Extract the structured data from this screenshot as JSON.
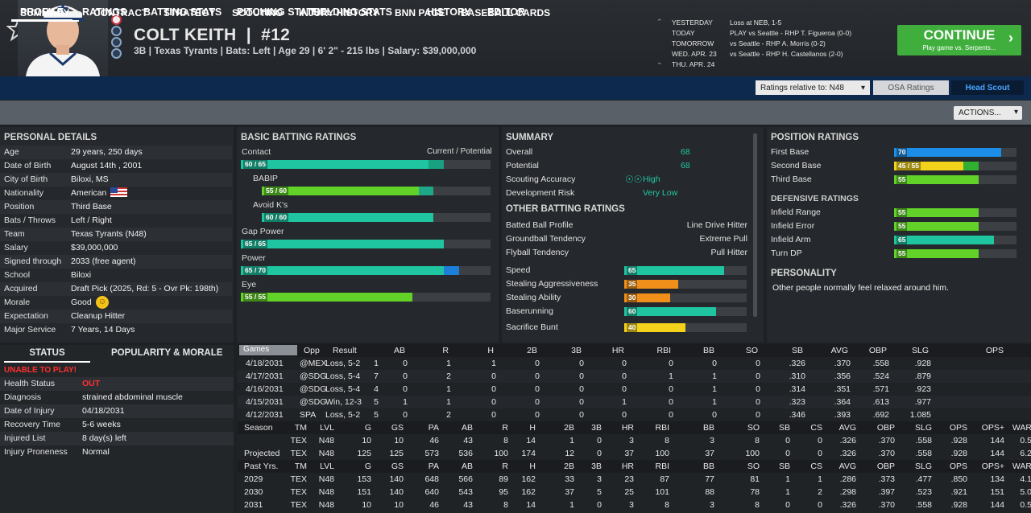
{
  "header": {
    "name": "COLT KEITH",
    "number": "#12",
    "info": "3B | Texas Tyrants | Bats: Left | Age 29 | 6' 2\" - 215 lbs | Salary: $39,000,000",
    "schedule": [
      {
        "day": "YESTERDAY",
        "game": "Loss at NEB, 1-5"
      },
      {
        "day": "TODAY",
        "game": "PLAY vs Seattle - RHP T. Figueroa (0-0)"
      },
      {
        "day": "TOMORROW",
        "game": "vs Seattle - RHP A. Morris (0-2)"
      },
      {
        "day": "WED. APR. 23",
        "game": "vs Seattle - RHP H. Castellanos (2-0)"
      },
      {
        "day": "THU. APR. 24",
        "game": ""
      }
    ],
    "continue_label": "CONTINUE",
    "continue_sub": "Play game vs. Serpents..."
  },
  "nav": {
    "main": [
      "PROFILE",
      "RATINGS",
      "BATTING STATS",
      "PITCHING STATS",
      "FIELDING STATS",
      "HISTORY",
      "EDITOR"
    ],
    "sub": [
      "SUMMARY",
      "CONTRACT",
      "STRATEGY",
      "SCOUTING",
      "INJURY HISTORY",
      "BNN PAGE",
      "BASEBALL CARDS"
    ],
    "ratings_relative": "Ratings relative to: N48",
    "osa": "OSA Ratings",
    "head_scout": "Head Scout",
    "actions": "ACTIONS..."
  },
  "personal": {
    "title": "PERSONAL DETAILS",
    "rows": [
      [
        "Age",
        "29 years, 250 days"
      ],
      [
        "Date of Birth",
        "August 14th , 2001"
      ],
      [
        "City of Birth",
        "Biloxi, MS"
      ],
      [
        "Nationality",
        "American"
      ],
      [
        "Position",
        "Third Base"
      ],
      [
        "Bats / Throws",
        "Left / Right"
      ],
      [
        "Team",
        "Texas Tyrants (N48)"
      ],
      [
        "Salary",
        "$39,000,000"
      ],
      [
        "Signed through",
        "2033 (free agent)"
      ],
      [
        "School",
        "Biloxi"
      ],
      [
        "Acquired",
        "Draft Pick (2025, Rd: 5 - Ovr Pk: 198th)"
      ],
      [
        "Morale",
        "Good"
      ],
      [
        "Expectation",
        "Cleanup Hitter"
      ],
      [
        "Major Service",
        "7 Years, 14 Days"
      ]
    ]
  },
  "status": {
    "tab1": "STATUS",
    "tab2": "POPULARITY & MORALE",
    "alert": "UNABLE TO PLAY!",
    "rows": [
      [
        "Health Status",
        "OUT"
      ],
      [
        "Diagnosis",
        "strained abdominal muscle"
      ],
      [
        "Date of Injury",
        "04/18/2031"
      ],
      [
        "Recovery Time",
        "5-6 weeks"
      ],
      [
        "Injured List",
        "8 day(s) left"
      ],
      [
        "Injury Proneness",
        "Normal"
      ]
    ]
  },
  "batting": {
    "title": "BASIC BATTING RATINGS",
    "col": "Current / Potential",
    "bars": [
      {
        "name": "Contact",
        "label": "60 / 65",
        "cur": 60,
        "pot": 65,
        "color": "#1fc4a0",
        "indent": false
      },
      {
        "name": "BABIP",
        "label": "55 / 60",
        "cur": 55,
        "pot": 60,
        "color": "#62d128",
        "indent": true
      },
      {
        "name": "Avoid K's",
        "label": "60 / 60",
        "cur": 60,
        "pot": 60,
        "color": "#1fc4a0",
        "indent": true
      },
      {
        "name": "Gap Power",
        "label": "65 / 65",
        "cur": 65,
        "pot": 65,
        "color": "#1fc4a0",
        "indent": false
      },
      {
        "name": "Power",
        "label": "65 / 70",
        "cur": 65,
        "pot": 70,
        "color": "#1fc4a0",
        "indent": false
      },
      {
        "name": "Eye",
        "label": "55 / 55",
        "cur": 55,
        "pot": 55,
        "color": "#62d128",
        "indent": false
      }
    ]
  },
  "summary": {
    "title": "SUMMARY",
    "rows": [
      [
        "Overall",
        "68"
      ],
      [
        "Potential",
        "68"
      ],
      [
        "Scouting Accuracy",
        "High"
      ],
      [
        "Development Risk",
        "Very Low"
      ]
    ],
    "other_title": "OTHER BATTING RATINGS",
    "other": [
      [
        "Batted Ball Profile",
        "Line Drive Hitter"
      ],
      [
        "Groundball Tendency",
        "Extreme Pull"
      ],
      [
        "Flyball Tendency",
        "Pull Hitter"
      ]
    ],
    "bars": [
      {
        "name": "Speed",
        "value": 65,
        "color": "#1fc4a0"
      },
      {
        "name": "Stealing Aggressiveness",
        "value": 35,
        "color": "#f0901a"
      },
      {
        "name": "Stealing Ability",
        "value": 30,
        "color": "#f0901a"
      },
      {
        "name": "Baserunning",
        "value": 60,
        "color": "#1fc4a0"
      },
      {
        "name": "Sacrifice Bunt",
        "value": 40,
        "color": "#f2d21a"
      }
    ]
  },
  "position": {
    "title": "POSITION RATINGS",
    "bars": [
      {
        "name": "First Base",
        "label": "70",
        "cur": 70,
        "pot": 70,
        "color": "#1c8ee8"
      },
      {
        "name": "Second Base",
        "label": "45 / 55",
        "cur": 45,
        "pot": 55,
        "color": "#f2d21a"
      },
      {
        "name": "Third Base",
        "label": "55",
        "cur": 55,
        "pot": 55,
        "color": "#62d128"
      }
    ],
    "def_title": "DEFENSIVE RATINGS",
    "def": [
      {
        "name": "Infield Range",
        "label": "55",
        "cur": 55,
        "color": "#62d128"
      },
      {
        "name": "Infield Error",
        "label": "55",
        "cur": 55,
        "color": "#62d128"
      },
      {
        "name": "Infield Arm",
        "label": "65",
        "cur": 65,
        "color": "#1fc4a0"
      },
      {
        "name": "Turn DP",
        "label": "55",
        "cur": 55,
        "color": "#62d128"
      }
    ],
    "personality_title": "PERSONALITY",
    "personality": "Other people normally feel relaxed around him."
  },
  "games": {
    "dropdown": "Games",
    "header": [
      "Opp",
      "Result",
      "AB",
      "R",
      "H",
      "2B",
      "3B",
      "HR",
      "RBI",
      "BB",
      "SO",
      "SB",
      "AVG",
      "OBP",
      "SLG",
      "OPS"
    ],
    "rows": [
      [
        "4/18/2031",
        "@MEX",
        "Loss, 5-2",
        "1",
        "0",
        "1",
        "1",
        "0",
        "0",
        "0",
        "0",
        "0",
        "0",
        ".326",
        ".370",
        ".558",
        ".928"
      ],
      [
        "4/17/2031",
        "@SDG",
        "Loss, 5-4",
        "7",
        "0",
        "2",
        "0",
        "0",
        "0",
        "0",
        "1",
        "1",
        "0",
        ".310",
        ".356",
        ".524",
        ".879"
      ],
      [
        "4/16/2031",
        "@SDG",
        "Loss, 5-4",
        "4",
        "0",
        "1",
        "0",
        "0",
        "0",
        "0",
        "0",
        "1",
        "0",
        ".314",
        ".351",
        ".571",
        ".923"
      ],
      [
        "4/15/2031",
        "@SDG",
        "Win, 12-3",
        "5",
        "1",
        "1",
        "0",
        "0",
        "0",
        "1",
        "0",
        "1",
        "0",
        ".323",
        ".364",
        ".613",
        ".977"
      ],
      [
        "4/12/2031",
        "SPA",
        "Loss, 5-2",
        "5",
        "0",
        "2",
        "0",
        "0",
        "0",
        "0",
        "0",
        "0",
        "0",
        ".346",
        ".393",
        ".692",
        "1.085"
      ]
    ],
    "season_header": [
      "Season",
      "TM",
      "LVL",
      "G",
      "GS",
      "PA",
      "AB",
      "R",
      "H",
      "2B",
      "3B",
      "HR",
      "RBI",
      "BB",
      "SO",
      "SB",
      "CS",
      "AVG",
      "OBP",
      "SLG",
      "OPS",
      "OPS+",
      "WAR"
    ],
    "season_rows": [
      [
        "",
        "TEX",
        "N48",
        "10",
        "10",
        "46",
        "43",
        "8",
        "14",
        "1",
        "0",
        "3",
        "8",
        "3",
        "8",
        "0",
        "0",
        ".326",
        ".370",
        ".558",
        ".928",
        "144",
        "0.5"
      ],
      [
        "Projected",
        "TEX",
        "N48",
        "125",
        "125",
        "573",
        "536",
        "100",
        "174",
        "12",
        "0",
        "37",
        "100",
        "37",
        "100",
        "0",
        "0",
        ".326",
        ".370",
        ".558",
        ".928",
        "144",
        "6.2"
      ]
    ],
    "past_header": [
      "Past Yrs.",
      "TM",
      "LVL",
      "G",
      "GS",
      "PA",
      "AB",
      "R",
      "H",
      "2B",
      "3B",
      "HR",
      "RBI",
      "BB",
      "SO",
      "SB",
      "CS",
      "AVG",
      "OBP",
      "SLG",
      "OPS",
      "OPS+",
      "WAR"
    ],
    "past_rows": [
      [
        "2029",
        "TEX",
        "N48",
        "153",
        "140",
        "648",
        "566",
        "89",
        "162",
        "33",
        "3",
        "23",
        "87",
        "77",
        "81",
        "1",
        "1",
        ".286",
        ".373",
        ".477",
        ".850",
        "134",
        "4.1"
      ],
      [
        "2030",
        "TEX",
        "N48",
        "151",
        "140",
        "640",
        "543",
        "95",
        "162",
        "37",
        "5",
        "25",
        "101",
        "88",
        "78",
        "1",
        "2",
        ".298",
        ".397",
        ".523",
        ".921",
        "151",
        "5.0"
      ],
      [
        "2031",
        "TEX",
        "N48",
        "10",
        "10",
        "46",
        "43",
        "8",
        "14",
        "1",
        "0",
        "3",
        "8",
        "3",
        "8",
        "0",
        "0",
        ".326",
        ".370",
        ".558",
        ".928",
        "144",
        "0.5"
      ]
    ]
  }
}
